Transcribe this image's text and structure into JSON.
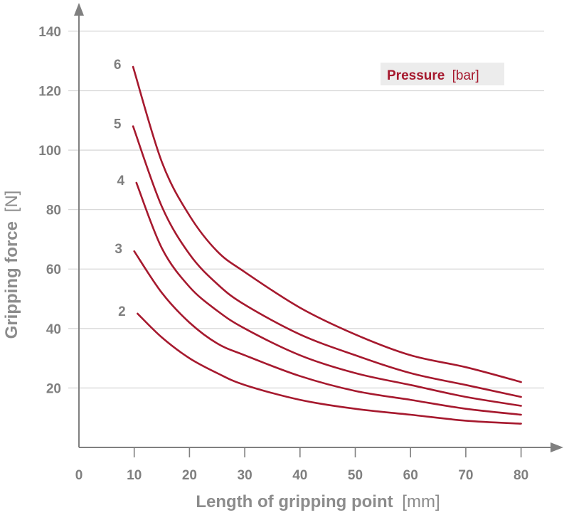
{
  "chart_data": {
    "type": "line",
    "xlabel": "Length of gripping point",
    "xlabel_unit": "[mm]",
    "ylabel": "Gripping force",
    "ylabel_unit": "[N]",
    "xlim": [
      0,
      87
    ],
    "ylim": [
      0,
      145
    ],
    "x_ticks": [
      "0",
      "10",
      "20",
      "30",
      "40",
      "50",
      "60",
      "70",
      "80"
    ],
    "y_ticks": [
      "20",
      "40",
      "60",
      "80",
      "100",
      "120",
      "140"
    ],
    "grid": "horizontal",
    "legend": {
      "title": "Pressure",
      "unit": "[bar]",
      "placement": "top-right"
    },
    "colors": {
      "curve": "#a6192e",
      "axis": "#808080",
      "grid": "#d9d9d9",
      "legend_bg": "#ececec"
    },
    "series": [
      {
        "name": "6",
        "x": [
          9.8,
          15,
          20,
          25,
          30,
          40,
          50,
          60,
          70,
          80
        ],
        "values": [
          128,
          96,
          78,
          66,
          59,
          47,
          38,
          31,
          27,
          22
        ]
      },
      {
        "name": "5",
        "x": [
          9.8,
          15,
          20,
          25,
          30,
          40,
          50,
          60,
          70,
          80
        ],
        "values": [
          108,
          81,
          65,
          55,
          48,
          38,
          31,
          25,
          21,
          17
        ]
      },
      {
        "name": "4",
        "x": [
          10.4,
          15,
          20,
          25,
          30,
          40,
          50,
          60,
          70,
          80
        ],
        "values": [
          89,
          67,
          54,
          46,
          40,
          31,
          25,
          21,
          17,
          14
        ]
      },
      {
        "name": "3",
        "x": [
          10,
          15,
          20,
          25,
          30,
          40,
          50,
          60,
          70,
          80
        ],
        "values": [
          66,
          52,
          42,
          35,
          31,
          24,
          19,
          16,
          13,
          11
        ]
      },
      {
        "name": "2",
        "x": [
          10.6,
          15,
          20,
          25,
          30,
          40,
          50,
          60,
          70,
          80
        ],
        "values": [
          45,
          37,
          30,
          25,
          21,
          16,
          13,
          11,
          9,
          8
        ]
      }
    ]
  }
}
